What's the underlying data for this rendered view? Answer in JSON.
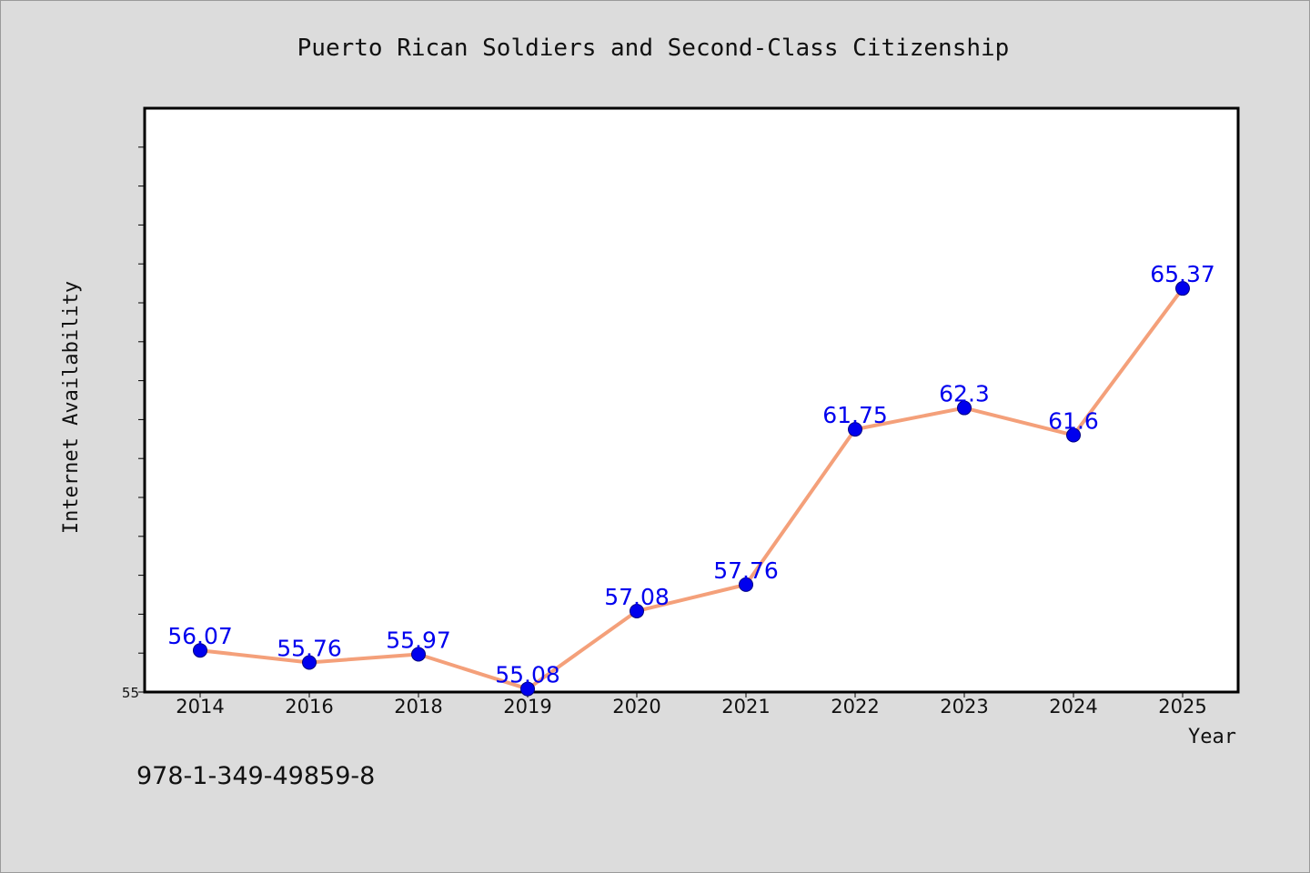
{
  "chart_data": {
    "type": "line",
    "title": "Puerto Rican Soldiers and Second-Class Citizenship",
    "xlabel": "Year",
    "ylabel": "Internet Availability",
    "categories": [
      "2014",
      "2016",
      "2018",
      "2019",
      "2020",
      "2021",
      "2022",
      "2023",
      "2024",
      "2025"
    ],
    "series": [
      {
        "values": [
          56.07,
          55.76,
          55.97,
          55.08,
          57.08,
          57.76,
          61.75,
          62.3,
          61.6,
          65.37
        ],
        "data_labels": [
          "56.07",
          "55.76",
          "55.97",
          "55.08",
          "57.08",
          "57.76",
          "61.75",
          "62.3",
          "61.6",
          "65.37"
        ]
      }
    ],
    "ylim": [
      55,
      70
    ],
    "ytick_step": 1,
    "ytick_labels": [
      {
        "value": 55,
        "label": "55"
      }
    ],
    "grid": false,
    "legend": "none",
    "colors": {
      "line": "#f4a07a",
      "marker": "#0000ee",
      "marker_edge": "#000080",
      "data_label": "#0000ee",
      "plot_background": "#ffffff",
      "figure_background": "#dcdcdc"
    }
  },
  "footnote": "978-1-349-49859-8"
}
